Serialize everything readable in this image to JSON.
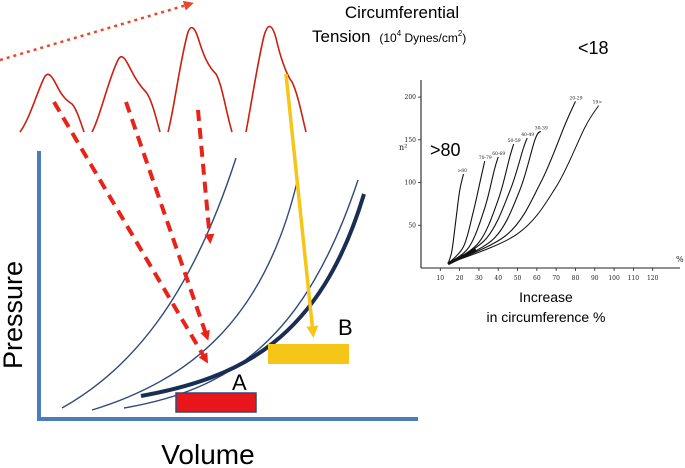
{
  "left_diagram": {
    "y_axis_label": "Pressure",
    "x_axis_label": "Volume",
    "marker_a_label": "A",
    "marker_b_label": "B",
    "colors": {
      "axis": "#4a7ebb",
      "thin_curve": "#2f4a7a",
      "thick_curve": "#1a2d52",
      "red_arrow": "#e8231a",
      "pulse_wave": "#cc1f10",
      "yellow": "#f5c518",
      "marker_a_fill": "#e8161b",
      "marker_a_border": "#2f4a7a",
      "dotted_arrow": "#e8472a"
    }
  },
  "right_chart": {
    "title_line1": "Circumferential",
    "title_line2": "Tension",
    "title_units": "(10",
    "title_units_sup": "4",
    "title_units_tail": " Dynes/cm",
    "title_units_sup2": "2",
    "title_units_close": ")",
    "annotation_high": ">80",
    "annotation_low": "<18",
    "xlabel_line1": "Increase",
    "xlabel_line2": "in circumference %",
    "y_axis_symbol": "n²",
    "x_axis_symbol": "%"
  },
  "chart_data": {
    "type": "line",
    "title": "Circumferential Tension (10⁴ Dynes/cm²)",
    "xlabel": "Increase in circumference %",
    "ylabel": "",
    "xlim": [
      0,
      130
    ],
    "ylim": [
      0,
      220
    ],
    "x_ticks": [
      "10",
      "20",
      "30",
      "40",
      "50",
      "60",
      "70",
      "80",
      "90",
      "100",
      "110",
      "120"
    ],
    "y_ticks": [
      "50",
      "100",
      "150",
      "200"
    ],
    "series": [
      {
        "name": ">80",
        "x": [
          14,
          16,
          18,
          20,
          22
        ],
        "y": [
          5,
          20,
          55,
          90,
          110
        ]
      },
      {
        "name": "70-79",
        "x": [
          14,
          22,
          27,
          31,
          33
        ],
        "y": [
          5,
          25,
          65,
          105,
          125
        ]
      },
      {
        "name": "60-69",
        "x": [
          14,
          25,
          33,
          38,
          40
        ],
        "y": [
          5,
          25,
          70,
          115,
          130
        ]
      },
      {
        "name": "50-59",
        "x": [
          14,
          30,
          40,
          46,
          48
        ],
        "y": [
          5,
          30,
          80,
          130,
          145
        ]
      },
      {
        "name": "40-49",
        "x": [
          14,
          34,
          46,
          53,
          55
        ],
        "y": [
          5,
          35,
          90,
          140,
          152
        ]
      },
      {
        "name": "30-39",
        "x": [
          14,
          38,
          51,
          59,
          62
        ],
        "y": [
          5,
          35,
          90,
          150,
          160
        ]
      },
      {
        "name": "20-29",
        "x": [
          14,
          45,
          62,
          75,
          80
        ],
        "y": [
          5,
          40,
          100,
          170,
          195
        ]
      },
      {
        "name": "19>",
        "x": [
          14,
          50,
          70,
          85,
          92
        ],
        "y": [
          5,
          40,
          95,
          165,
          190
        ]
      }
    ]
  }
}
